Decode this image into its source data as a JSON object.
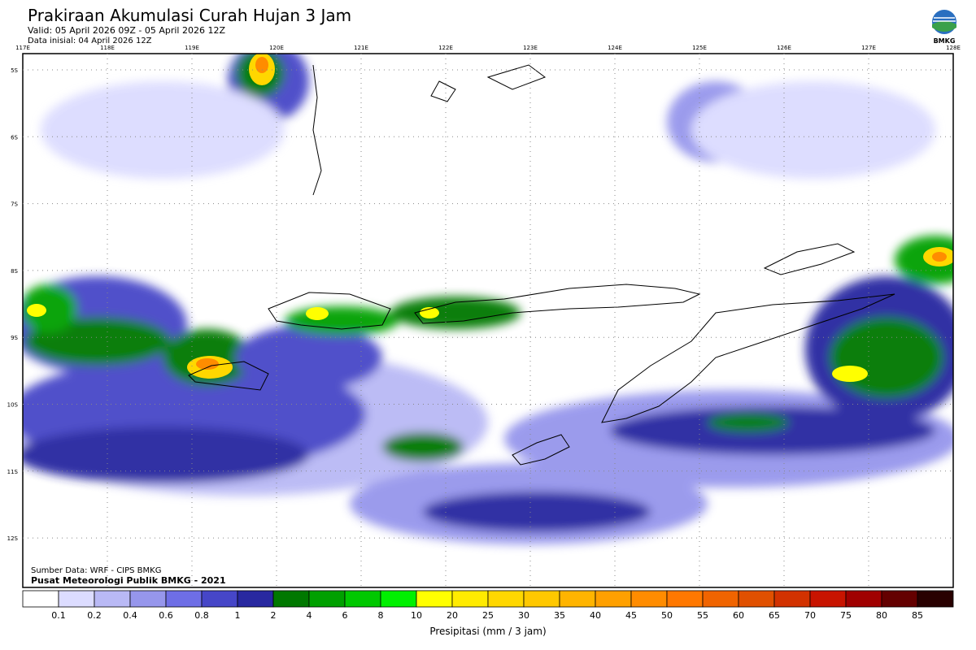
{
  "header": {
    "title": "Prakiraan Akumulasi Curah Hujan 3 Jam",
    "valid": "Valid: 05 April 2026 09Z - 05 April 2026 12Z",
    "initial": "Data inisial: 04 April 2026 12Z"
  },
  "logo": {
    "label": "BMKG"
  },
  "map": {
    "longitude_labels": [
      "117E",
      "118E",
      "119E",
      "120E",
      "121E",
      "122E",
      "123E",
      "124E",
      "125E",
      "126E",
      "127E",
      "128E"
    ],
    "latitude_labels": [
      "5S",
      "6S",
      "7S",
      "8S",
      "9S",
      "10S",
      "11S",
      "12S"
    ]
  },
  "credits": {
    "source": "Sumber Data: WRF - CIPS BMKG",
    "publisher": "Pusat Meteorologi Publik BMKG - 2021"
  },
  "legend": {
    "colors": [
      "#ffffff",
      "#dcdcff",
      "#b9b9f5",
      "#9696ec",
      "#6e6ee6",
      "#4646c8",
      "#2828a0",
      "#007800",
      "#00a000",
      "#00c800",
      "#00f000",
      "#ffff00",
      "#ffeb00",
      "#ffd700",
      "#ffc800",
      "#ffb400",
      "#ffa000",
      "#ff8c00",
      "#ff7800",
      "#f06400",
      "#e05000",
      "#d23200",
      "#c81400",
      "#a00000",
      "#640000",
      "#280000"
    ],
    "labels": [
      "0.1",
      "0.2",
      "0.4",
      "0.6",
      "0.8",
      "1",
      "2",
      "4",
      "6",
      "8",
      "10",
      "20",
      "25",
      "30",
      "35",
      "40",
      "45",
      "50",
      "55",
      "60",
      "65",
      "70",
      "75",
      "80",
      "85"
    ],
    "title": "Presipitasi (mm / 3 jam)"
  }
}
